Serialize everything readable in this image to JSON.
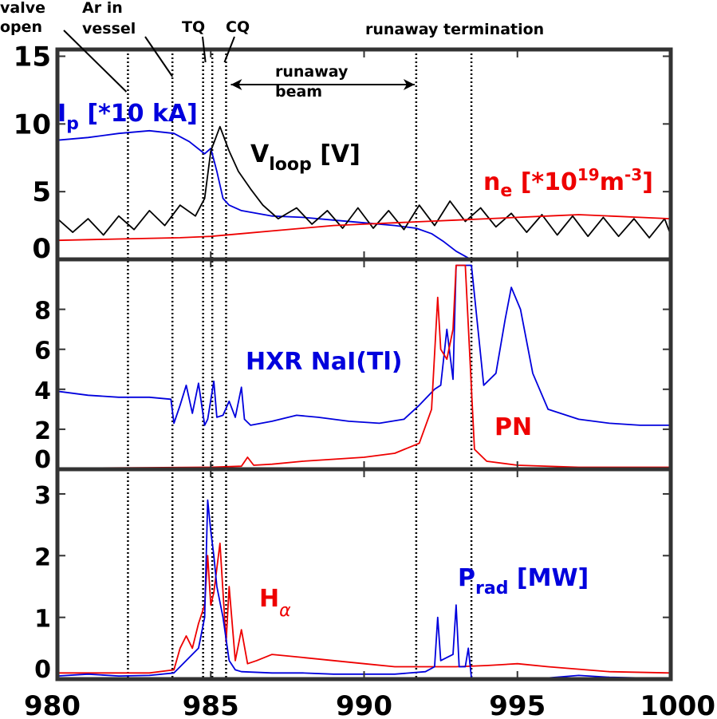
{
  "chart_data": {
    "type": "line",
    "x_range": [
      980,
      1000
    ],
    "x_ticks": [
      "980",
      "985",
      "990",
      "995",
      "1000"
    ],
    "annotations": {
      "valve_open": "valve\nopen",
      "ar_in_vessel": "Ar in\nvessel",
      "tq": "TQ",
      "cq": "CQ",
      "runaway_beam": "runaway\nbeam",
      "runaway_termination": "runaway termination"
    },
    "event_times": [
      982.3,
      983.75,
      984.75,
      985.05,
      985.5,
      991.7,
      993.5
    ],
    "panels": [
      {
        "id": "top",
        "ylim": [
          0,
          15.5
        ],
        "y_ticks": [
          0,
          5,
          10,
          15
        ],
        "labels": {
          "ip": {
            "main": "I",
            "sub": "p",
            "rest": " [*10 kA]",
            "color": "#0000dd"
          },
          "vloop": {
            "main": "V",
            "sub": "loop",
            "rest": " [V]",
            "color": "#000000"
          },
          "ne": {
            "main": "n",
            "sub": "e",
            "mid": " [*10",
            "sup": "19",
            "mid2": "m",
            "sup2": "-3",
            "end": "]",
            "color": "#ee0000"
          }
        },
        "series": [
          {
            "name": "Ip",
            "color": "#0000dd",
            "x": [
              980,
              981,
              982,
              983,
              983.8,
              984.3,
              984.8,
              985.0,
              985.2,
              985.4,
              985.6,
              986,
              987,
              988,
              989,
              990,
              991,
              991.7,
              992.2,
              992.6,
              993.0,
              993.4,
              993.6
            ],
            "y": [
              8.8,
              9.0,
              9.3,
              9.5,
              9.3,
              8.7,
              7.8,
              8.2,
              6.5,
              4.5,
              4.0,
              3.6,
              3.2,
              3.1,
              2.9,
              2.7,
              2.5,
              2.3,
              1.9,
              1.3,
              0.6,
              0.1,
              0
            ]
          },
          {
            "name": "Vloop",
            "color": "#000000",
            "x": [
              980,
              980.5,
              981,
              981.5,
              982,
              982.5,
              983,
              983.5,
              984,
              984.5,
              984.8,
              985.0,
              985.3,
              985.6,
              985.9,
              986.3,
              986.7,
              987.2,
              987.8,
              988.3,
              988.8,
              989.3,
              989.8,
              990.3,
              990.8,
              991.3,
              991.8,
              992.3,
              992.8,
              993.3,
              993.8,
              994.3,
              994.8,
              995.3,
              995.8,
              996.3,
              996.8,
              997.3,
              997.8,
              998.3,
              998.8,
              999.3,
              999.8,
              1000
            ],
            "y": [
              3.0,
              2.0,
              3.0,
              1.8,
              3.2,
              2.2,
              3.6,
              2.5,
              4.0,
              3.2,
              4.5,
              8.0,
              9.8,
              8.0,
              6.5,
              5.2,
              4.0,
              3.0,
              3.8,
              2.6,
              3.6,
              2.3,
              3.8,
              2.3,
              3.6,
              2.2,
              4.0,
              2.5,
              4.3,
              2.8,
              3.8,
              2.4,
              3.4,
              2.0,
              3.3,
              1.8,
              3.2,
              1.7,
              3.1,
              1.7,
              3.0,
              1.6,
              3.0,
              1.8
            ]
          },
          {
            "name": "ne",
            "color": "#ee0000",
            "x": [
              980,
              982,
              984,
              985,
              986,
              987,
              988,
              989,
              990,
              991,
              992,
              993,
              994,
              995,
              996,
              997,
              998,
              999,
              1000
            ],
            "y": [
              1.4,
              1.5,
              1.6,
              1.7,
              1.9,
              2.1,
              2.3,
              2.5,
              2.6,
              2.7,
              2.8,
              2.9,
              3.0,
              3.1,
              3.2,
              3.3,
              3.2,
              3.1,
              3.0
            ]
          }
        ]
      },
      {
        "id": "middle",
        "ylim": [
          0,
          10.5
        ],
        "y_ticks": [
          0,
          2,
          4,
          6,
          8
        ],
        "labels": {
          "hxr": {
            "text": "HXR NaI(Tl)",
            "color": "#0000dd"
          },
          "pn": {
            "text": "PN",
            "color": "#ee0000"
          }
        },
        "series": [
          {
            "name": "HXR NaI(Tl)",
            "color": "#0000dd",
            "x": [
              980,
              981,
              982,
              983,
              983.7,
              983.8,
              984.0,
              984.2,
              984.4,
              984.6,
              984.8,
              984.9,
              985.1,
              985.2,
              985.4,
              985.6,
              985.8,
              986.0,
              986.1,
              986.3,
              987,
              987.8,
              988.5,
              989.5,
              990.5,
              991.3,
              991.8,
              992.3,
              992.5,
              992.7,
              992.9,
              993.0,
              993.2,
              993.5,
              993.9,
              994.3,
              994.6,
              994.8,
              995.1,
              995.5,
              996,
              997,
              998,
              999,
              1000
            ],
            "y": [
              3.9,
              3.7,
              3.6,
              3.6,
              3.5,
              2.3,
              3.2,
              4.2,
              2.8,
              4.3,
              2.2,
              2.5,
              4.4,
              2.6,
              2.7,
              3.4,
              2.6,
              4.1,
              2.5,
              2.2,
              2.4,
              2.7,
              2.6,
              2.4,
              2.3,
              2.5,
              3.2,
              4.0,
              4.2,
              7.0,
              4.5,
              10.2,
              10.2,
              10.2,
              4.2,
              4.8,
              7.5,
              9.1,
              8.0,
              4.8,
              3.0,
              2.5,
              2.3,
              2.2,
              2.2
            ]
          },
          {
            "name": "PN",
            "color": "#ee0000",
            "x": [
              980,
              983,
              985,
              986,
              986.2,
              986.4,
              987,
              988,
              989,
              990,
              991,
              991.8,
              992.2,
              992.4,
              992.5,
              992.7,
              992.9,
              993.0,
              993.3,
              993.6,
              994,
              995,
              997,
              1000
            ],
            "y": [
              0.05,
              0.08,
              0.1,
              0.15,
              0.6,
              0.2,
              0.25,
              0.4,
              0.5,
              0.6,
              0.8,
              1.3,
              3.0,
              8.6,
              6.0,
              5.5,
              7.0,
              10.2,
              10.2,
              1.0,
              0.4,
              0.2,
              0.1,
              0.1
            ]
          }
        ]
      },
      {
        "id": "bottom",
        "ylim": [
          0,
          3.4
        ],
        "y_ticks": [
          0,
          1,
          2,
          3
        ],
        "labels": {
          "prad": {
            "main": "P",
            "sub": "rad",
            "rest": " [MW]",
            "color": "#0000dd"
          },
          "halpha": {
            "main": "H",
            "sub": "α",
            "color": "#ee0000"
          }
        },
        "series": [
          {
            "name": "Halpha",
            "color": "#ee0000",
            "x": [
              980,
              983,
              983.8,
              984.0,
              984.2,
              984.4,
              984.6,
              984.8,
              984.9,
              985.0,
              985.1,
              985.3,
              985.5,
              985.6,
              985.8,
              986.0,
              986.2,
              986.5,
              987,
              988,
              989,
              990,
              991,
              992,
              993,
              994,
              995,
              996,
              998,
              1000
            ],
            "y": [
              0.1,
              0.1,
              0.15,
              0.5,
              0.7,
              0.5,
              0.9,
              1.2,
              2.0,
              1.2,
              1.4,
              2.2,
              0.6,
              1.5,
              0.3,
              0.8,
              0.25,
              0.3,
              0.4,
              0.35,
              0.3,
              0.25,
              0.2,
              0.2,
              0.2,
              0.22,
              0.25,
              0.2,
              0.12,
              0.1
            ]
          },
          {
            "name": "Prad",
            "color": "#0000dd",
            "x": [
              980,
              981,
              982,
              983,
              983.8,
              984.2,
              984.6,
              984.8,
              984.9,
              985.0,
              985.1,
              985.2,
              985.4,
              985.6,
              985.8,
              986,
              987,
              988,
              989,
              990,
              991,
              992,
              992.3,
              992.4,
              992.5,
              992.9,
              993.0,
              993.1,
              993.3,
              993.4,
              993.5,
              994,
              995,
              996,
              997,
              998,
              999,
              1000
            ],
            "y": [
              0.05,
              0.08,
              0.05,
              0.06,
              0.1,
              0.3,
              0.5,
              1.0,
              2.9,
              2.4,
              2.0,
              1.5,
              1.0,
              0.3,
              0.15,
              0.12,
              0.1,
              0.1,
              0.08,
              0.08,
              0.08,
              0.12,
              0.2,
              1.0,
              0.3,
              0.4,
              1.2,
              0.2,
              0.2,
              0.5,
              0.02,
              0.02,
              0.02,
              0.02,
              0.06,
              0.03,
              0.02,
              0.02
            ]
          }
        ]
      }
    ]
  }
}
